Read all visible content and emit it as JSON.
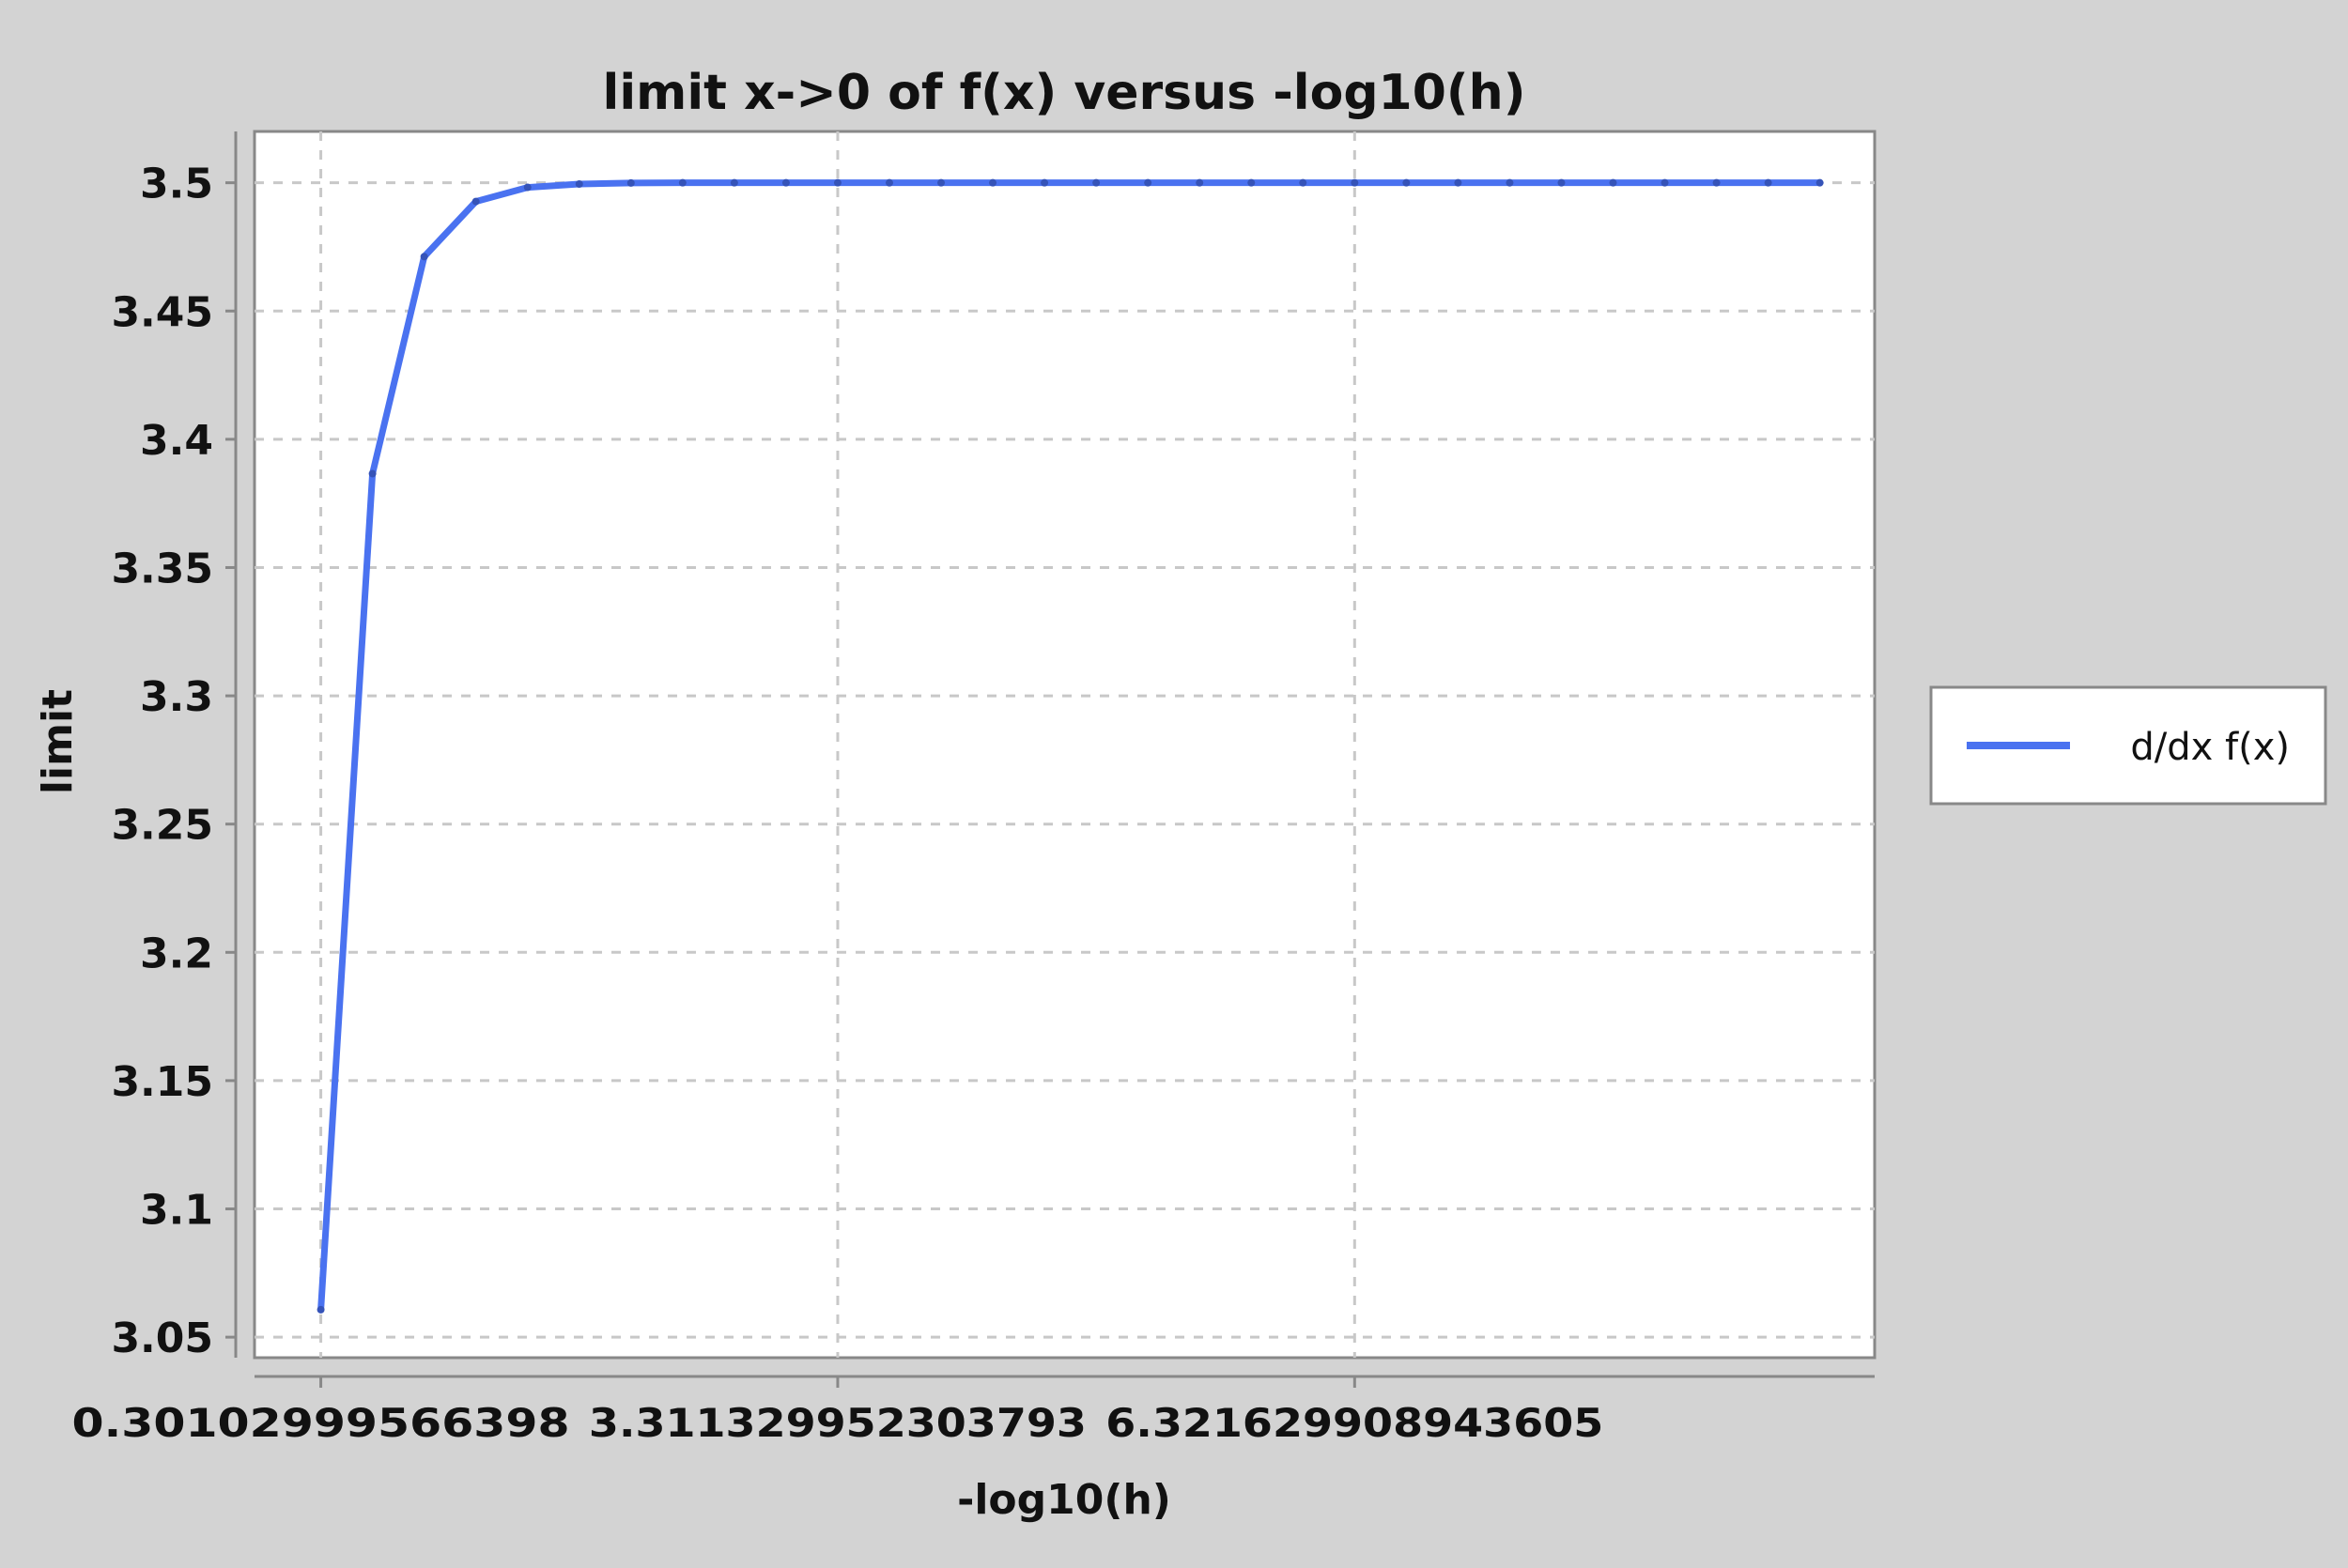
{
  "chart_data": {
    "type": "line",
    "title": "limit x->0 of f(x) versus -log10(h)",
    "xlabel": "-log10(h)",
    "ylabel": "limit",
    "xlim": [
      -0.085,
      9.35
    ],
    "ylim": [
      3.042,
      3.52
    ],
    "x_ticks": [
      0.3010299956639812,
      3.311329952303793,
      6.321629908943605
    ],
    "x_tick_labels": [
      "0.30102999566398",
      "3.311329952303793",
      "6.321629908943605"
    ],
    "y_ticks": [
      3.05,
      3.1,
      3.15,
      3.2,
      3.25,
      3.3,
      3.35,
      3.4,
      3.45,
      3.5
    ],
    "y_tick_labels": [
      "3.05",
      "3.1",
      "3.15",
      "3.2",
      "3.25",
      "3.3",
      "3.35",
      "3.4",
      "3.45",
      "3.5"
    ],
    "grid": true,
    "legend_position": "right",
    "series": [
      {
        "name": "d/dx f(x)",
        "color": "#4a72f0",
        "x": [
          0.30103,
          0.60206,
          0.90309,
          1.20412,
          1.50515,
          1.80618,
          2.10721,
          2.40824,
          2.70927,
          3.0103,
          3.31133,
          3.61236,
          3.91339,
          4.21442,
          4.51545,
          4.81648,
          5.11751,
          5.41854,
          5.71957,
          6.0206,
          6.32163,
          6.62266,
          6.92369,
          7.22472,
          7.52575,
          7.82678,
          8.12781,
          8.42884,
          8.72987,
          9.0309
        ],
        "y": [
          3.0607,
          3.3866,
          3.4712,
          3.4927,
          3.4982,
          3.4995,
          3.4999,
          3.5,
          3.5,
          3.5,
          3.5,
          3.5,
          3.5,
          3.5,
          3.5,
          3.5,
          3.5,
          3.5,
          3.5,
          3.5,
          3.5,
          3.5,
          3.5,
          3.5,
          3.5,
          3.5,
          3.5,
          3.5,
          3.5,
          3.5
        ]
      }
    ]
  }
}
